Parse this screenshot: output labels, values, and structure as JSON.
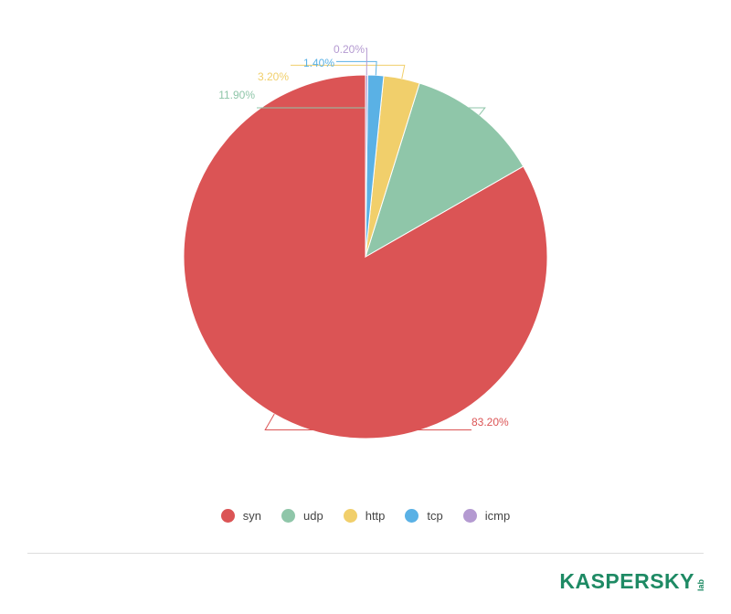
{
  "chart_data": {
    "type": "pie",
    "categories": [
      "syn",
      "udp",
      "http",
      "tcp",
      "icmp"
    ],
    "values": [
      83.2,
      11.9,
      3.2,
      1.4,
      0.2
    ],
    "labels": [
      "83.20%",
      "11.90%",
      "3.20%",
      "1.40%",
      "0.20%"
    ],
    "colors": [
      "#db5455",
      "#8fc6a9",
      "#f1cf6b",
      "#5ab1e5",
      "#b49ad1"
    ],
    "start_angle_deg": 0,
    "direction": "counterclockwise",
    "legend_position": "bottom"
  },
  "legend": {
    "items": [
      {
        "label": "syn",
        "color": "#db5455"
      },
      {
        "label": "udp",
        "color": "#8fc6a9"
      },
      {
        "label": "http",
        "color": "#f1cf6b"
      },
      {
        "label": "tcp",
        "color": "#5ab1e5"
      },
      {
        "label": "icmp",
        "color": "#b49ad1"
      }
    ]
  },
  "branding": {
    "logo_text": "KASPERSKY",
    "logo_suffix": "lab",
    "logo_color": "#1e8a64"
  }
}
